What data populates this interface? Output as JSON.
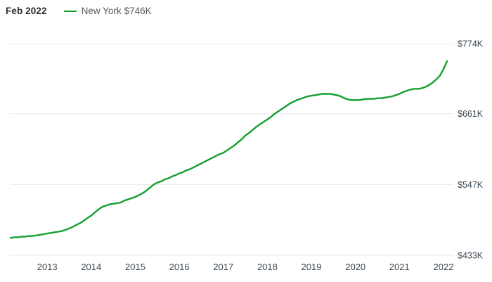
{
  "header": {
    "date_label": "Feb 2022",
    "legend": {
      "series_name": "New York",
      "value_label": "$746K",
      "color": "#14a02d"
    }
  },
  "chart_data": {
    "type": "line",
    "title": "",
    "xlabel": "",
    "ylabel": "",
    "legend_position": "top-left",
    "grid": "horizontal",
    "colors": {
      "line": "#14a02d",
      "grid": "#e9e9e9",
      "axis_text": "#3d4852"
    },
    "x_axis": {
      "tick_labels": [
        "2013",
        "2014",
        "2015",
        "2016",
        "2017",
        "2018",
        "2019",
        "2020",
        "2021",
        "2022"
      ],
      "start_year": 2012,
      "start_month": 3
    },
    "y_axis": {
      "position": "right",
      "range": [
        433,
        774
      ],
      "ticks": [
        {
          "label": "$433K",
          "value": 433
        },
        {
          "label": "$547K",
          "value": 547
        },
        {
          "label": "$661K",
          "value": 661
        },
        {
          "label": "$774K",
          "value": 774
        }
      ]
    },
    "series": [
      {
        "name": "New York",
        "color": "#14a02d",
        "frequency": "monthly",
        "start_month": "2012-03",
        "end_month": "2022-02",
        "unit": "USD thousands",
        "latest_value_label": "$746K",
        "values": [
          461,
          462,
          462,
          463,
          463,
          464,
          464,
          465,
          466,
          467,
          468,
          469,
          470,
          471,
          472,
          474,
          476,
          479,
          482,
          485,
          489,
          493,
          497,
          502,
          507,
          511,
          513,
          515,
          516,
          517,
          518,
          521,
          523,
          525,
          527,
          530,
          533,
          537,
          542,
          547,
          550,
          552,
          555,
          557,
          560,
          562,
          565,
          567,
          570,
          572,
          575,
          578,
          581,
          584,
          587,
          590,
          593,
          596,
          598,
          602,
          606,
          610,
          615,
          620,
          626,
          630,
          635,
          640,
          644,
          648,
          652,
          656,
          661,
          665,
          669,
          673,
          677,
          680,
          683,
          685,
          687,
          689,
          690,
          691,
          692,
          693,
          693,
          693,
          692,
          691,
          689,
          686,
          684,
          683,
          683,
          683,
          684,
          685,
          685,
          685,
          686,
          686,
          687,
          688,
          689,
          691,
          693,
          696,
          698,
          700,
          701,
          701,
          702,
          704,
          707,
          711,
          716,
          722,
          733,
          746
        ]
      }
    ]
  }
}
